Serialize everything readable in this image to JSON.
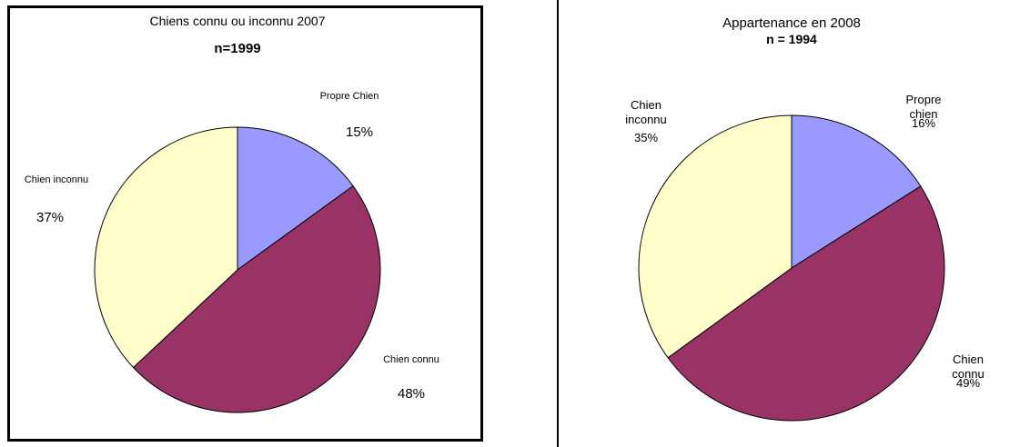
{
  "chart_data": [
    {
      "type": "pie",
      "title": "Chiens connu ou inconnu 2007",
      "subtitle": "n=1999",
      "categories": [
        "Propre Chien",
        "Chien connu",
        "Chien inconnu"
      ],
      "values": [
        15,
        48,
        37
      ],
      "value_labels": [
        "15%",
        "48%",
        "37%"
      ],
      "colors": [
        "#9999ff",
        "#993366",
        "#ffffcc"
      ]
    },
    {
      "type": "pie",
      "title": "Appartenance en 2008",
      "subtitle": "n = 1994",
      "categories": [
        "Propre chien",
        "Chien connu",
        "Chien inconnu"
      ],
      "values": [
        16,
        49,
        35
      ],
      "value_labels": [
        "16%",
        "49%",
        "35%"
      ],
      "colors": [
        "#9999ff",
        "#993366",
        "#ffffcc"
      ]
    }
  ]
}
